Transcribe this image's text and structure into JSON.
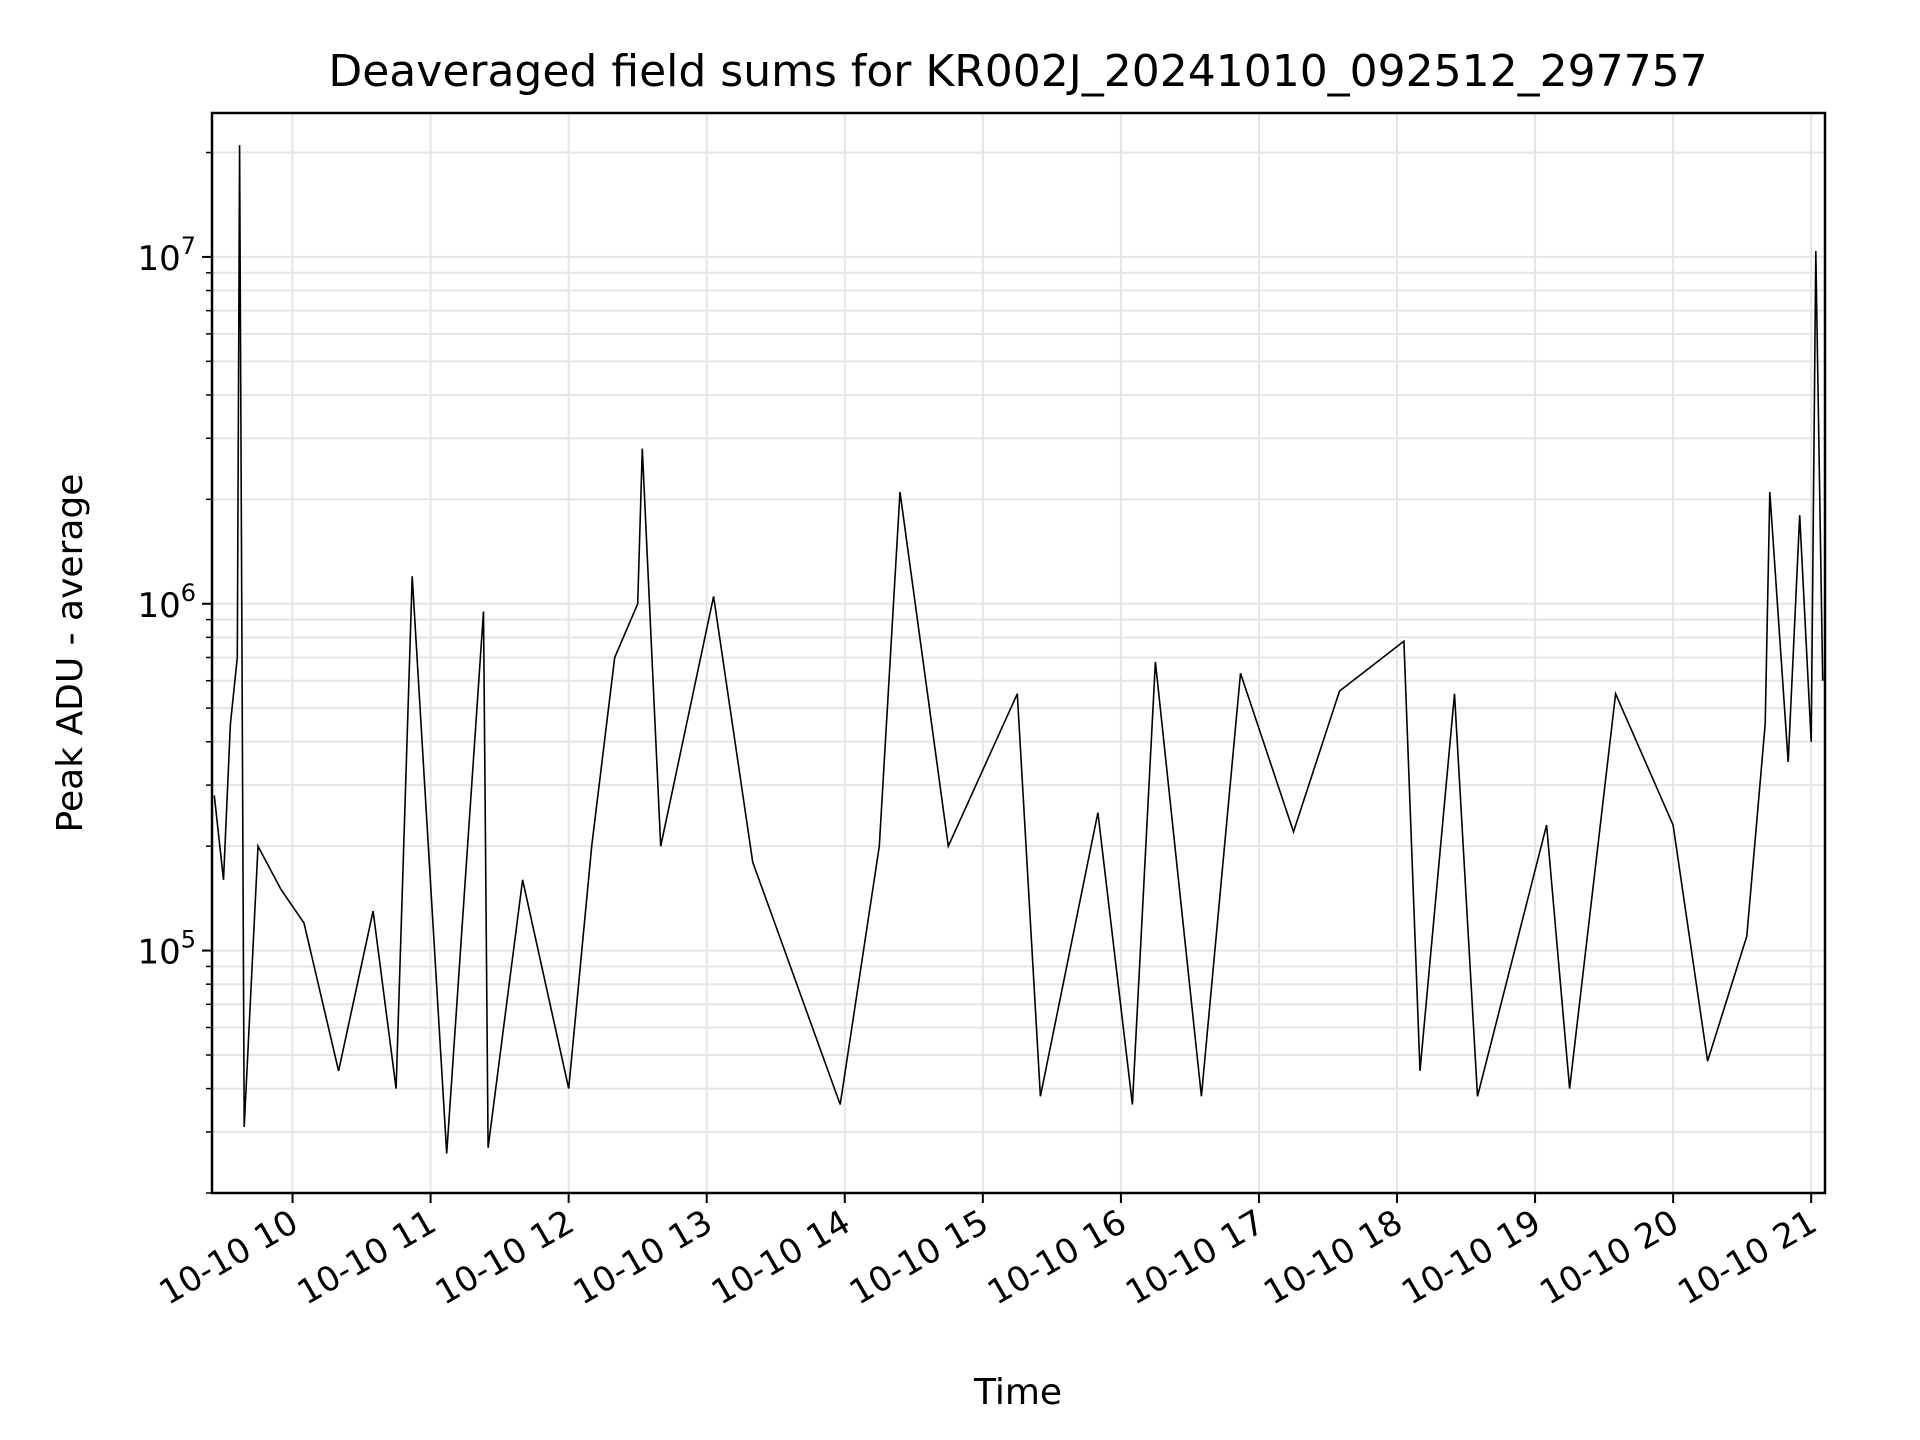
{
  "chart_data": {
    "type": "line",
    "title": "Deaveraged field sums for KR002J_20241010_092512_297757",
    "xlabel": "Time",
    "ylabel": "Peak ADU - average",
    "yscale": "log",
    "grid": true,
    "legend": "none",
    "line_color": "#000000",
    "grid_color": "#e5e5e5",
    "xlim": [
      "2024-10-10 09:25",
      "2024-10-10 21:06"
    ],
    "ylim": [
      20000,
      26000000
    ],
    "x_ticks": [
      {
        "value": "2024-10-10 10:00",
        "label": "10-10 10"
      },
      {
        "value": "2024-10-10 11:00",
        "label": "10-10 11"
      },
      {
        "value": "2024-10-10 12:00",
        "label": "10-10 12"
      },
      {
        "value": "2024-10-10 13:00",
        "label": "10-10 13"
      },
      {
        "value": "2024-10-10 14:00",
        "label": "10-10 14"
      },
      {
        "value": "2024-10-10 15:00",
        "label": "10-10 15"
      },
      {
        "value": "2024-10-10 16:00",
        "label": "10-10 16"
      },
      {
        "value": "2024-10-10 17:00",
        "label": "10-10 17"
      },
      {
        "value": "2024-10-10 18:00",
        "label": "10-10 18"
      },
      {
        "value": "2024-10-10 19:00",
        "label": "10-10 19"
      },
      {
        "value": "2024-10-10 20:00",
        "label": "10-10 20"
      },
      {
        "value": "2024-10-10 21:00",
        "label": "10-10 21"
      }
    ],
    "y_ticks": [
      {
        "value": 100000,
        "base": "10",
        "exp": "5"
      },
      {
        "value": 1000000,
        "base": "10",
        "exp": "6"
      },
      {
        "value": 10000000,
        "base": "10",
        "exp": "7"
      }
    ],
    "series": [
      {
        "points": [
          [
            "2024-10-10 09:26",
            280000
          ],
          [
            "2024-10-10 09:30",
            160000
          ],
          [
            "2024-10-10 09:33",
            450000
          ],
          [
            "2024-10-10 09:36",
            700000
          ],
          [
            "2024-10-10 09:37",
            21000000
          ],
          [
            "2024-10-10 09:39",
            31000
          ],
          [
            "2024-10-10 09:45",
            200000
          ],
          [
            "2024-10-10 09:55",
            150000
          ],
          [
            "2024-10-10 10:05",
            120000
          ],
          [
            "2024-10-10 10:20",
            45000
          ],
          [
            "2024-10-10 10:35",
            130000
          ],
          [
            "2024-10-10 10:45",
            40000
          ],
          [
            "2024-10-10 10:52",
            1200000
          ],
          [
            "2024-10-10 11:07",
            26000
          ],
          [
            "2024-10-10 11:23",
            950000
          ],
          [
            "2024-10-10 11:25",
            27000
          ],
          [
            "2024-10-10 11:40",
            160000
          ],
          [
            "2024-10-10 12:00",
            40000
          ],
          [
            "2024-10-10 12:10",
            200000
          ],
          [
            "2024-10-10 12:20",
            700000
          ],
          [
            "2024-10-10 12:30",
            1000000
          ],
          [
            "2024-10-10 12:32",
            2800000
          ],
          [
            "2024-10-10 12:40",
            200000
          ],
          [
            "2024-10-10 13:03",
            1050000
          ],
          [
            "2024-10-10 13:20",
            180000
          ],
          [
            "2024-10-10 13:58",
            36000
          ],
          [
            "2024-10-10 14:15",
            200000
          ],
          [
            "2024-10-10 14:24",
            2100000
          ],
          [
            "2024-10-10 14:45",
            200000
          ],
          [
            "2024-10-10 15:15",
            550000
          ],
          [
            "2024-10-10 15:25",
            38000
          ],
          [
            "2024-10-10 15:50",
            250000
          ],
          [
            "2024-10-10 16:05",
            36000
          ],
          [
            "2024-10-10 16:15",
            680000
          ],
          [
            "2024-10-10 16:35",
            38000
          ],
          [
            "2024-10-10 16:52",
            630000
          ],
          [
            "2024-10-10 17:15",
            220000
          ],
          [
            "2024-10-10 17:35",
            560000
          ],
          [
            "2024-10-10 18:03",
            780000
          ],
          [
            "2024-10-10 18:10",
            45000
          ],
          [
            "2024-10-10 18:25",
            550000
          ],
          [
            "2024-10-10 18:35",
            38000
          ],
          [
            "2024-10-10 19:05",
            230000
          ],
          [
            "2024-10-10 19:15",
            40000
          ],
          [
            "2024-10-10 19:35",
            550000
          ],
          [
            "2024-10-10 20:00",
            230000
          ],
          [
            "2024-10-10 20:15",
            48000
          ],
          [
            "2024-10-10 20:32",
            110000
          ],
          [
            "2024-10-10 20:40",
            450000
          ],
          [
            "2024-10-10 20:42",
            2100000
          ],
          [
            "2024-10-10 20:50",
            350000
          ],
          [
            "2024-10-10 20:55",
            1800000
          ],
          [
            "2024-10-10 21:00",
            400000
          ],
          [
            "2024-10-10 21:02",
            10400000
          ],
          [
            "2024-10-10 21:05",
            600000
          ]
        ]
      }
    ]
  }
}
